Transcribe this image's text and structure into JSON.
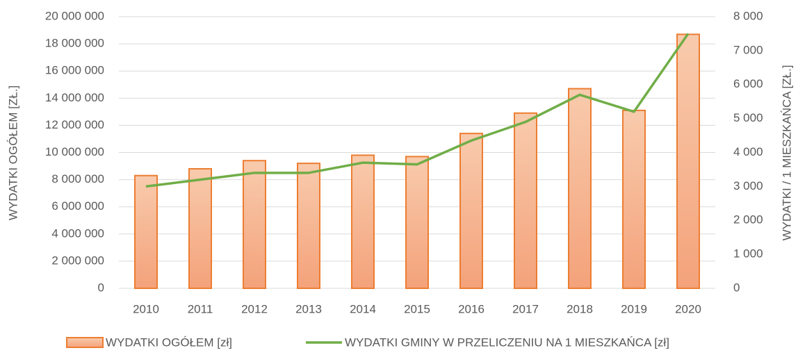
{
  "chart_data": {
    "type": "bar_line",
    "categories": [
      "2010",
      "2011",
      "2012",
      "2013",
      "2014",
      "2015",
      "2016",
      "2017",
      "2018",
      "2019",
      "2020"
    ],
    "series": [
      {
        "name": "WYDATKI OGÓŁEM [zł]",
        "type": "bar",
        "color": "#f4b183",
        "values": [
          8300000,
          8800000,
          9400000,
          9200000,
          9800000,
          9700000,
          11400000,
          12900000,
          14700000,
          13100000,
          18700000
        ]
      },
      {
        "name": "WYDATKI GMINY W PRZELICZENIU NA 1 MIESZKAŃCA [zł]",
        "type": "line",
        "color": "#70ad47",
        "axis": "y2",
        "values": [
          3000,
          3200,
          3400,
          3400,
          3700,
          3650,
          4350,
          4900,
          5700,
          5200,
          7500
        ]
      }
    ],
    "ylabel": "WYDATKI OGÓŁEM [ZŁ.]",
    "y2label": "WYDATKI / 1 MIESZKAŃCA [ZŁ.]",
    "ylim": [
      0,
      20000000
    ],
    "yticks": [
      0,
      {
        "value": 2000000,
        "label": "2 000 000"
      },
      {
        "value": 4000000,
        "label": "4 000 000"
      },
      {
        "value": 6000000,
        "label": "6 000 000"
      },
      {
        "value": 8000000,
        "label": "8 000 000"
      },
      {
        "value": 10000000,
        "label": "10 000 000"
      },
      {
        "value": 12000000,
        "label": "12 000 000"
      },
      {
        "value": 14000000,
        "label": "14 000 000"
      },
      {
        "value": 16000000,
        "label": "16 000 000"
      },
      {
        "value": 18000000,
        "label": "18 000 000"
      },
      {
        "value": 20000000,
        "label": "20 000 000"
      }
    ],
    "y2lim": [
      0,
      8000
    ],
    "y2ticks": [
      0,
      {
        "value": 1000,
        "label": "1 000"
      },
      {
        "value": 2000,
        "label": "2 000"
      },
      {
        "value": 3000,
        "label": "3 000"
      },
      {
        "value": 4000,
        "label": "4 000"
      },
      {
        "value": 5000,
        "label": "5 000"
      },
      {
        "value": 6000,
        "label": "6 000"
      },
      {
        "value": 7000,
        "label": "7 000"
      },
      {
        "value": 8000,
        "label": "8 000"
      }
    ],
    "grid": true,
    "legend": "bottom"
  }
}
